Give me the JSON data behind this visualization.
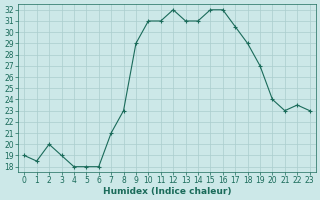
{
  "x": [
    0,
    1,
    2,
    3,
    4,
    5,
    6,
    7,
    8,
    9,
    10,
    11,
    12,
    13,
    14,
    15,
    16,
    17,
    18,
    19,
    20,
    21,
    22,
    23
  ],
  "y": [
    19,
    18.5,
    20,
    19,
    18,
    18,
    18,
    21,
    23,
    29,
    31,
    31,
    32,
    31,
    31,
    32,
    32,
    30.5,
    29,
    27,
    24,
    23,
    23.5,
    23
  ],
  "xlabel": "Humidex (Indice chaleur)",
  "xlim": [
    -0.5,
    23.5
  ],
  "ylim": [
    17.5,
    32.5
  ],
  "yticks": [
    18,
    19,
    20,
    21,
    22,
    23,
    24,
    25,
    26,
    27,
    28,
    29,
    30,
    31,
    32
  ],
  "xticks": [
    0,
    1,
    2,
    3,
    4,
    5,
    6,
    7,
    8,
    9,
    10,
    11,
    12,
    13,
    14,
    15,
    16,
    17,
    18,
    19,
    20,
    21,
    22,
    23
  ],
  "line_color": "#1a6b5a",
  "bg_color": "#cce8e8",
  "grid_color": "#aacece",
  "tick_color": "#1a6b5a",
  "label_color": "#1a6b5a",
  "font_size": 5.5,
  "label_font_size": 6.5
}
